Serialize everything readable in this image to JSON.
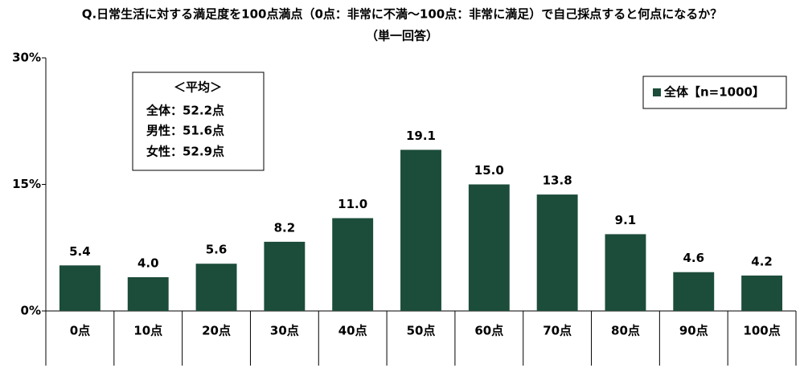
{
  "chart_data": {
    "type": "bar",
    "title": "Q.日常生活に対する満足度を100点満点（0点：非常に不満～100点：非常に満足）で自己採点すると何点になるか？",
    "subtitle": "（単一回答）",
    "categories": [
      "0点",
      "10点",
      "20点",
      "30点",
      "40点",
      "50点",
      "60点",
      "70点",
      "80点",
      "90点",
      "100点"
    ],
    "series": [
      {
        "name": "全体【n=1000】",
        "color": "#1c4c3a",
        "values": [
          5.4,
          4.0,
          5.6,
          8.2,
          11.0,
          19.1,
          15.0,
          13.8,
          9.1,
          4.6,
          4.2
        ],
        "value_labels": [
          "5.4",
          "4.0",
          "5.6",
          "8.2",
          "11.0",
          "19.1",
          "15.0",
          "13.8",
          "9.1",
          "4.6",
          "4.2"
        ]
      }
    ],
    "ylim": [
      0,
      30
    ],
    "yticks": [
      {
        "value": 0,
        "label": "0%"
      },
      {
        "value": 15,
        "label": "15%"
      },
      {
        "value": 30,
        "label": "30%"
      }
    ],
    "grid": false,
    "legend": "top-right",
    "annotations": [
      "＜平均＞",
      "全体：52.2点",
      "男性：51.6点",
      "女性：52.9点"
    ]
  }
}
